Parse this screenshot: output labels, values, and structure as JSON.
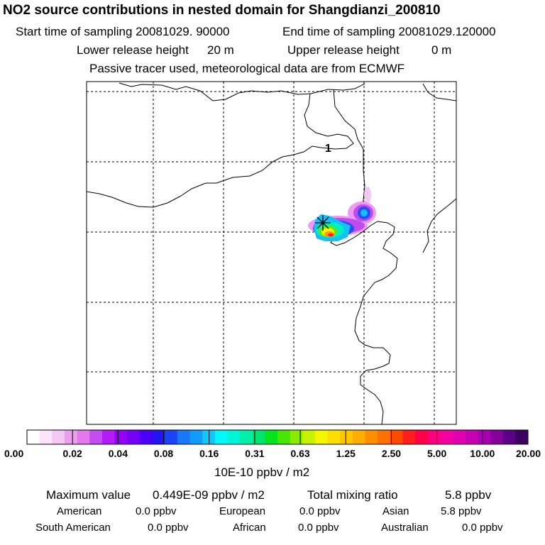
{
  "header": {
    "title": "NO2 source contributions in nested domain for Shangdianzi_200810",
    "start_label": "Start time of sampling 20081029. 90000",
    "end_label": "End time of sampling 20081029.120000",
    "lower_label": "Lower release height",
    "lower_value": "20 m",
    "upper_label": "Upper release height",
    "upper_value": "0 m",
    "note": "Passive tracer used, meteorological data are from ECMWF"
  },
  "chart_data": {
    "type": "heatmap",
    "title": "NO2 source contributions in nested domain for Shangdianzi_200810",
    "units": "10E-10 ppbv / m2",
    "map_annotation": "1",
    "receptor_marker": "Shangdianzi",
    "colorbar": {
      "tick_labels": [
        "0.00",
        "0.02",
        "0.04",
        "0.08",
        "0.16",
        "0.31",
        "0.63",
        "1.25",
        "2.50",
        "5.00",
        "10.00",
        "20.00"
      ],
      "colors": [
        "#ffffff",
        "#fbe3fb",
        "#f5c7f5",
        "#ec9fee",
        "#e479ec",
        "#c34df0",
        "#b31cf4",
        "#9400f6",
        "#7400f8",
        "#4a00f8",
        "#2414f4",
        "#1c44f6",
        "#1878f8",
        "#109cfb",
        "#14c6fb",
        "#00f8f8",
        "#00f4d8",
        "#00f0a8",
        "#00e470",
        "#06e21c",
        "#46e600",
        "#8cec00",
        "#c6f200",
        "#f6f600",
        "#fede00",
        "#fec600",
        "#feac00",
        "#fe9000",
        "#fe7000",
        "#fe4a00",
        "#fe1c1c",
        "#fe0048",
        "#fe0082",
        "#f600a0",
        "#e000b0",
        "#c800b4",
        "#a800b0",
        "#86009c",
        "#5c0088",
        "#3c0060"
      ]
    },
    "plume": [
      {
        "value": 0.02,
        "color": "#ee9af0"
      },
      {
        "value": 0.04,
        "color": "#c04cf0"
      },
      {
        "value": 0.08,
        "color": "#2a4cf4"
      },
      {
        "value": 0.16,
        "color": "#14bffa"
      },
      {
        "value": 0.31,
        "color": "#00f0c0"
      },
      {
        "value": 0.63,
        "color": "#60e800"
      },
      {
        "value": 1.25,
        "color": "#f6f600"
      },
      {
        "value": 2.5,
        "color": "#fe9a00"
      },
      {
        "value": 5.0,
        "color": "#fe1c1c"
      }
    ]
  },
  "footer": {
    "max_label": "Maximum value",
    "max_value": "0.449E-09 ppbv / m2",
    "total_label": "Total mixing ratio",
    "total_value": "5.8 ppbv",
    "regions": [
      {
        "name": "American",
        "value": "0.0 ppbv"
      },
      {
        "name": "European",
        "value": "0.0 ppbv"
      },
      {
        "name": "Asian",
        "value": "5.8 ppbv"
      },
      {
        "name": "South American",
        "value": "0.0 ppbv"
      },
      {
        "name": "African",
        "value": "0.0 ppbv"
      },
      {
        "name": "Australian",
        "value": "0.0 ppbv"
      }
    ]
  }
}
